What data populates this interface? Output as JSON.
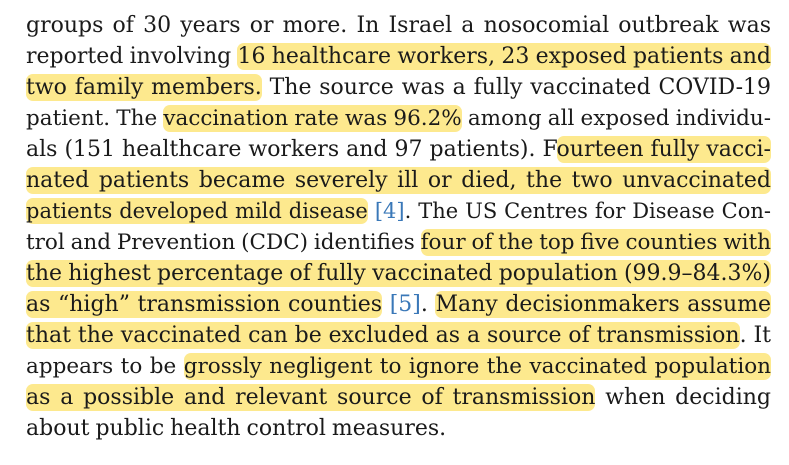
{
  "paragraph": {
    "lines": [
      [
        {
          "t": "groups of 30 years or more. In Israel a nosocomial outbreak was",
          "h": false
        }
      ],
      [
        {
          "t": "reported involving ",
          "h": false
        },
        {
          "t": "16 healthcare workers, 23 exposed patients and",
          "h": true
        }
      ],
      [
        {
          "t": "two family members.",
          "h": true
        },
        {
          "t": " The source was a fully vaccinated COVID-19",
          "h": false
        }
      ],
      [
        {
          "t": "patient. The ",
          "h": false
        },
        {
          "t": "vaccination rate was 96.2%",
          "h": true
        },
        {
          "t": " among all exposed individu-",
          "h": false
        }
      ],
      [
        {
          "t": "als (151 healthcare workers and 97 patients). F",
          "h": false
        },
        {
          "t": "ourteen fully vacci-",
          "h": true
        }
      ],
      [
        {
          "t": "nated patients became severely ill or died, the two unvaccinated",
          "h": true
        }
      ],
      [
        {
          "t": "patients developed mild disease",
          "h": true
        },
        {
          "t": " ",
          "h": false
        },
        {
          "t": "[4]",
          "h": false,
          "ref": true
        },
        {
          "t": ". The US Centres for Disease Con-",
          "h": false
        }
      ],
      [
        {
          "t": "trol and Prevention (CDC) identifies ",
          "h": false
        },
        {
          "t": "four of the top five counties with",
          "h": true
        }
      ],
      [
        {
          "t": "the highest percentage of fully vaccinated population (99.9–84.3%)",
          "h": true
        }
      ],
      [
        {
          "t": "as “high” transmission counties",
          "h": true
        },
        {
          "t": " ",
          "h": false
        },
        {
          "t": "[5]",
          "h": false,
          "ref": true
        },
        {
          "t": ". ",
          "h": false
        },
        {
          "t": "Many decisionmakers assume",
          "h": true
        }
      ],
      [
        {
          "t": "that the vaccinated can be excluded as a source of transmission",
          "h": true
        },
        {
          "t": ". It",
          "h": false
        }
      ],
      [
        {
          "t": "appears to be ",
          "h": false
        },
        {
          "t": "grossly negligent to ignore the vaccinated population",
          "h": true
        }
      ],
      [
        {
          "t": "as a possible and relevant source of transmission",
          "h": true
        },
        {
          "t": " when deciding",
          "h": false
        }
      ],
      [
        {
          "t": "about public health control measures.",
          "h": false
        }
      ]
    ]
  }
}
